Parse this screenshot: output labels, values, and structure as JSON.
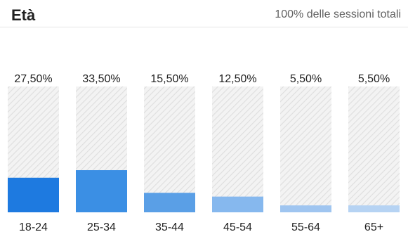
{
  "header": {
    "title": "Età",
    "subtitle": "100% delle sessioni totali"
  },
  "chart_data": {
    "type": "bar",
    "title": "Età",
    "subtitle": "100% delle sessioni totali",
    "categories": [
      "18-24",
      "25-34",
      "35-44",
      "45-54",
      "55-64",
      "65+"
    ],
    "values": [
      27.5,
      33.5,
      15.5,
      12.5,
      5.5,
      5.5
    ],
    "value_labels": [
      "27,50%",
      "33,50%",
      "15,50%",
      "12,50%",
      "5,50%",
      "5,50%"
    ],
    "ylim": [
      0,
      100
    ],
    "xlabel": "",
    "ylabel": "",
    "grid": false,
    "legend": "none",
    "colors": [
      "#1e7ae0",
      "#3b8fe4",
      "#5a9fe6",
      "#86b8ee",
      "#9fc5f0",
      "#b6d3f3"
    ],
    "track_color": "#e4e4e4"
  }
}
